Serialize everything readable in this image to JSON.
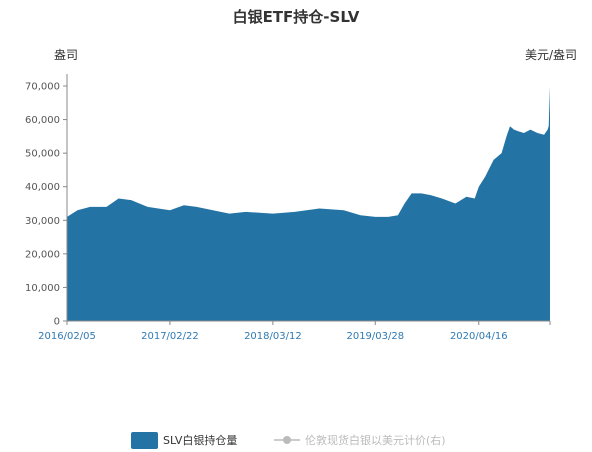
{
  "chart_data": {
    "type": "area",
    "title": "白银ETF持仓-SLV",
    "left_unit": "盎司",
    "right_unit": "美元/盎司",
    "ylim": [
      0,
      70000
    ],
    "y_ticks": [
      "0",
      "10,000",
      "20,000",
      "30,000",
      "40,000",
      "50,000",
      "60,000",
      "70,000"
    ],
    "x_ticks": [
      "2016/02/05",
      "2017/02/22",
      "2018/03/12",
      "2019/03/28",
      "2020/04/16"
    ],
    "series": [
      {
        "name": "SLV白银持仓量",
        "color": "#2374a4",
        "x": [
          "2016-02-05",
          "2016-03-15",
          "2016-05-01",
          "2016-07-01",
          "2016-08-15",
          "2016-10-01",
          "2016-12-01",
          "2017-02-22",
          "2017-04-15",
          "2017-06-01",
          "2017-08-01",
          "2017-10-01",
          "2017-12-01",
          "2018-03-12",
          "2018-06-01",
          "2018-09-01",
          "2018-12-01",
          "2019-02-01",
          "2019-03-28",
          "2019-05-15",
          "2019-06-20",
          "2019-07-15",
          "2019-08-10",
          "2019-09-15",
          "2019-10-20",
          "2019-12-01",
          "2020-01-20",
          "2020-03-01",
          "2020-04-01",
          "2020-04-16",
          "2020-05-10",
          "2020-06-10",
          "2020-07-10",
          "2020-07-28",
          "2020-08-10",
          "2020-08-25",
          "2020-09-10",
          "2020-10-01",
          "2020-10-25",
          "2020-11-20",
          "2020-12-15",
          "2020-12-28",
          "2021-01-01",
          "2021-01-06"
        ],
        "values": [
          31000,
          33000,
          34000,
          34000,
          36500,
          36000,
          34000,
          33000,
          34500,
          34000,
          33000,
          32000,
          32500,
          32000,
          32500,
          33500,
          33000,
          31500,
          31000,
          31000,
          31500,
          35000,
          38000,
          38000,
          37500,
          36500,
          35000,
          37000,
          36500,
          40000,
          43000,
          48000,
          50000,
          55000,
          58000,
          57000,
          56500,
          56000,
          57000,
          56000,
          55500,
          57000,
          58000,
          70000
        ]
      },
      {
        "name": "伦敦现货白银以美元计价(右)",
        "color": "#bbbbbb",
        "x": [],
        "values": []
      }
    ],
    "grid": false,
    "legend_position": "bottom"
  }
}
